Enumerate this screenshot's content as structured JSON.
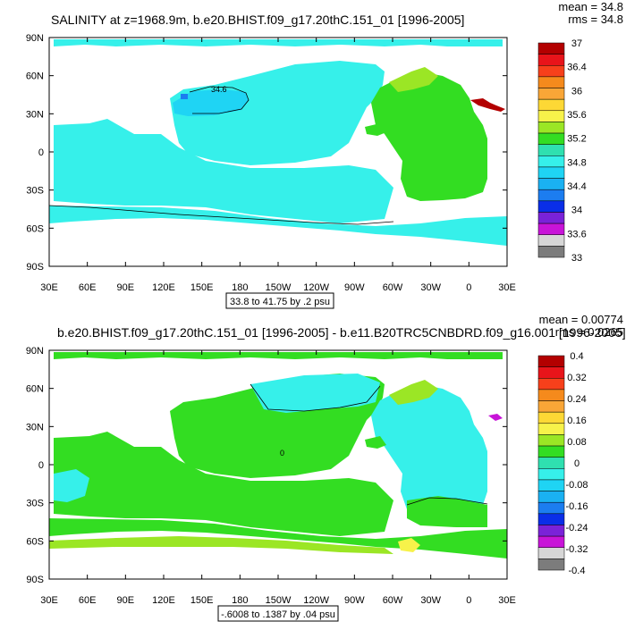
{
  "chart_data": [
    {
      "type": "heatmap",
      "title": "SALINITY at z=1968.9m, b.e20.BHIST.f09_g17.20thC.151_01 [1996-2005]",
      "stats": {
        "mean": "mean = 34.8",
        "rms": "rms = 34.8"
      },
      "x_ticks": [
        "30E",
        "60E",
        "90E",
        "120E",
        "150E",
        "180",
        "150W",
        "120W",
        "90W",
        "60W",
        "30W",
        "0",
        "30E"
      ],
      "y_ticks": [
        "90N",
        "60N",
        "30N",
        "0",
        "30S",
        "60S",
        "90S"
      ],
      "contour_label": "34.6",
      "range_label": "33.8 to 41.75 by .2 psu",
      "colorbar": {
        "labels": [
          "37",
          "36.4",
          "36",
          "35.6",
          "35.2",
          "34.8",
          "34.4",
          "34",
          "33.6",
          "33"
        ],
        "colors": [
          "#b30000",
          "#e8141a",
          "#f7401b",
          "#f58a1c",
          "#f9a637",
          "#fdd835",
          "#f7f24a",
          "#9be625",
          "#33dd22",
          "#2fe0b0",
          "#36f0ea",
          "#1fd4f4",
          "#1ab1f2",
          "#1c7df0",
          "#0a2ee8",
          "#7a22d8",
          "#c814d8",
          "#d6d6d6",
          "#7c7c7c"
        ]
      },
      "fields": {
        "pacific": "#36f0ea",
        "atlantic": "#33dd22",
        "north_pacific_core": "#1fd4f4",
        "med_outflow": "#b30000"
      }
    },
    {
      "type": "heatmap",
      "title": "b.e20.BHIST.f09_g17.20thC.151_01 [1996-2005] - b.e11.B20TRC5CNBDRD.f09_g16.001 [1996-2005]",
      "stats": {
        "mean": "mean = 0.00774",
        "rms": "rms = 0.0265"
      },
      "x_ticks": [
        "30E",
        "60E",
        "90E",
        "120E",
        "150E",
        "180",
        "150W",
        "120W",
        "90W",
        "60W",
        "30W",
        "0",
        "30E"
      ],
      "y_ticks": [
        "90N",
        "60N",
        "30N",
        "0",
        "30S",
        "60S",
        "90S"
      ],
      "contour_label": "0",
      "range_label": "-.6008 to .1387 by .04 psu",
      "colorbar": {
        "labels": [
          "0.4",
          "0.32",
          "0.24",
          "0.16",
          "0.08",
          "0",
          "-0.08",
          "-0.16",
          "-0.24",
          "-0.32",
          "-0.4"
        ],
        "colors": [
          "#b30000",
          "#e8141a",
          "#f7401b",
          "#f58a1c",
          "#f9a637",
          "#fdd835",
          "#f7f24a",
          "#9be625",
          "#33dd22",
          "#2fe0b0",
          "#36f0ea",
          "#1fd4f4",
          "#1ab1f2",
          "#1c7df0",
          "#0a2ee8",
          "#7a22d8",
          "#c814d8",
          "#d6d6d6",
          "#7c7c7c"
        ]
      },
      "fields": {
        "positive": "#33dd22",
        "negative": "#36f0ea",
        "weak_positive": "#9be625",
        "med_outflow": "#c814d8"
      }
    }
  ]
}
